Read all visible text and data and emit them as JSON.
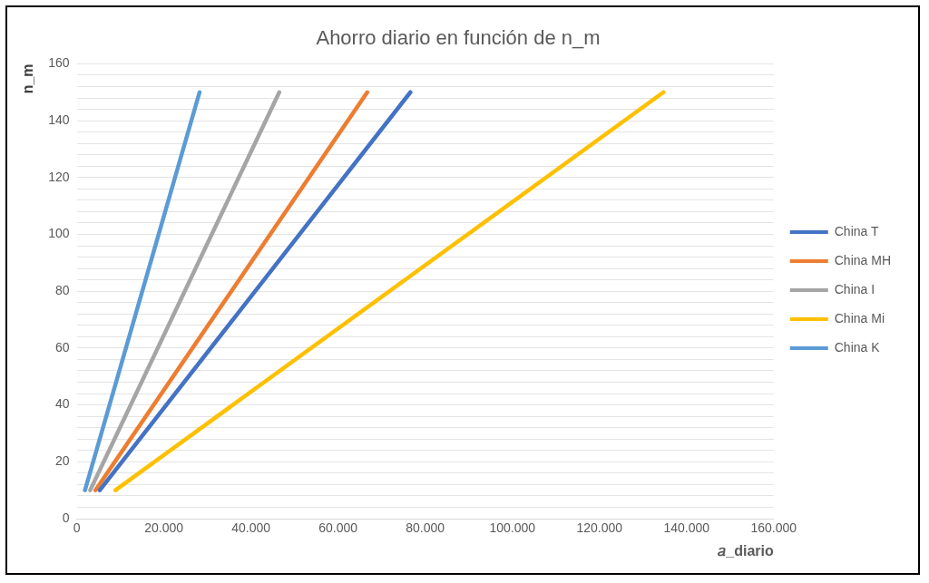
{
  "chart_data": {
    "type": "line",
    "title": "Ahorro diario en función de n_m",
    "xlabel": "𝑎_diario",
    "ylabel": "n_m",
    "series": [
      {
        "name": "China T",
        "color": "#4472c4",
        "x": [
          5300,
          76600
        ],
        "values": [
          10,
          150
        ]
      },
      {
        "name": "China MH",
        "color": "#ed7d31",
        "x": [
          4300,
          66700
        ],
        "values": [
          10,
          150
        ]
      },
      {
        "name": "China I",
        "color": "#a5a5a5",
        "x": [
          3100,
          46500
        ],
        "values": [
          10,
          150
        ]
      },
      {
        "name": "China Mi",
        "color": "#ffc000",
        "x": [
          8900,
          134700
        ],
        "values": [
          10,
          150
        ]
      },
      {
        "name": "China K",
        "color": "#5b9bd5",
        "x": [
          1900,
          28200
        ],
        "values": [
          10,
          150
        ]
      }
    ],
    "xlim": [
      0,
      160000
    ],
    "xticks": [
      0,
      {
        "value": 20000,
        "label": "20.000"
      },
      {
        "value": 40000,
        "label": "40.000"
      },
      {
        "value": 60000,
        "label": "60.000"
      },
      {
        "value": 80000,
        "label": "80.000"
      },
      {
        "value": 100000,
        "label": "100.000"
      },
      {
        "value": 120000,
        "label": "120.000"
      },
      {
        "value": 140000,
        "label": "140.000"
      },
      {
        "value": 160000,
        "label": "160.000"
      }
    ],
    "ylim": [
      0,
      160
    ],
    "yticks": [
      0,
      {
        "value": 4,
        "label": null
      },
      {
        "value": 8,
        "label": null
      },
      {
        "value": 12,
        "label": null
      },
      {
        "value": 16,
        "label": null
      },
      20,
      {
        "value": 24,
        "label": null
      },
      {
        "value": 28,
        "label": null
      },
      {
        "value": 32,
        "label": null
      },
      {
        "value": 36,
        "label": null
      },
      40,
      {
        "value": 44,
        "label": null
      },
      {
        "value": 48,
        "label": null
      },
      {
        "value": 52,
        "label": null
      },
      {
        "value": 56,
        "label": null
      },
      60,
      {
        "value": 64,
        "label": null
      },
      {
        "value": 68,
        "label": null
      },
      {
        "value": 72,
        "label": null
      },
      {
        "value": 76,
        "label": null
      },
      80,
      {
        "value": 84,
        "label": null
      },
      {
        "value": 88,
        "label": null
      },
      {
        "value": 92,
        "label": null
      },
      {
        "value": 96,
        "label": null
      },
      100,
      {
        "value": 104,
        "label": null
      },
      {
        "value": 108,
        "label": null
      },
      {
        "value": 112,
        "label": null
      },
      {
        "value": 116,
        "label": null
      },
      120,
      {
        "value": 124,
        "label": null
      },
      {
        "value": 128,
        "label": null
      },
      {
        "value": 132,
        "label": null
      },
      {
        "value": 136,
        "label": null
      },
      140,
      {
        "value": 144,
        "label": null
      },
      {
        "value": 148,
        "label": null
      },
      {
        "value": 152,
        "label": null
      },
      {
        "value": 156,
        "label": null
      },
      160
    ],
    "grid": "y",
    "legend": "right",
    "marker": "none",
    "line_style": "solid"
  }
}
